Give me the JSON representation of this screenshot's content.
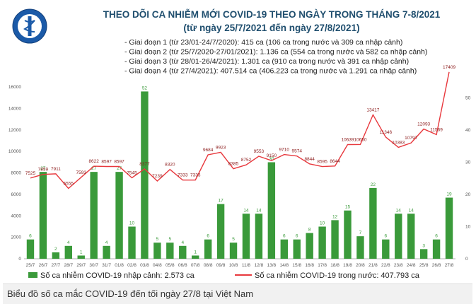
{
  "title": {
    "line1": "THEO DÕI CA NHIỄM MỚI COVID-19 THEO NGÀY TRONG THÁNG 7-8/2021",
    "line2": "(từ ngày 25/7/2021 đến ngày 27/8/2021)"
  },
  "logo": {
    "text": "BỘ Y TẾ · MINISTRY OF HEALTH"
  },
  "phases": [
    "- Giai đoạn 1 (từ 23/01-24/7/2020): 415 ca (106 ca trong nước và 309 ca nhập cảnh)",
    "- Giai đoạn 2 (từ 25/7/2020-27/01/2021): 1.136 ca (554 ca trong nước và 582 ca nhập cảnh)",
    "- Giai đoạn 3 (từ 28/01-26/4/2021): 1.301 ca (910 ca trong nước và 391 ca nhập cảnh)",
    "- Giai đoạn 4 (từ 27/4/2021): 407.514 ca (406.223 ca trong nước và 1.291 ca nhập cảnh)"
  ],
  "legend": {
    "bar_label": "Số ca nhiễm COVID-19 nhập cảnh: 2.573 ca",
    "line_label": "Số ca nhiễm COVID-19 trong nước: 407.793 ca"
  },
  "caption": "Biểu đồ số ca mắc COVID-19 đến tối ngày 27/8 tại Việt Nam",
  "colors": {
    "bar": "#3a9a3a",
    "line": "#e8383d",
    "title": "#1f4e6e"
  },
  "chart_data": {
    "type": "bar",
    "categories": [
      "25/7",
      "26/7",
      "27/7",
      "28/7",
      "29/7",
      "30/7",
      "31/7",
      "01/8",
      "02/8",
      "03/8",
      "04/8",
      "05/8",
      "06/8",
      "07/8",
      "08/8",
      "09/8",
      "10/8",
      "11/8",
      "12/8",
      "13/8",
      "14/8",
      "15/8",
      "16/8",
      "17/8",
      "18/8",
      "19/8",
      "20/8",
      "21/8",
      "22/8",
      "23/8",
      "24/8",
      "25/8",
      "26/8",
      "27/8"
    ],
    "series": [
      {
        "name": "Số ca nhiễm COVID-19 nhập cảnh: 2.573 ca",
        "type": "bar",
        "axis": "right",
        "values": [
          6,
          27,
          2,
          4,
          1,
          27,
          4,
          27,
          10,
          52,
          5,
          5,
          4,
          1,
          6,
          17,
          5,
          14,
          14,
          30,
          6,
          6,
          8,
          10,
          12,
          15,
          7,
          22,
          6,
          14,
          14,
          3,
          6,
          19
        ]
      },
      {
        "name": "Số ca nhiễm COVID-19 trong nước: 407.793 ca",
        "type": "line",
        "axis": "left",
        "values": [
          7525,
          7859,
          7911,
          6555,
          7593,
          8622,
          8597,
          8597,
          7545,
          8377,
          7239,
          8320,
          7333,
          7333,
          9684,
          9923,
          8385,
          8752,
          9553,
          9150,
          9710,
          9574,
          8844,
          8595,
          8644,
          10639,
          10650,
          13417,
          11346,
          10383,
          10797,
          12093,
          11569,
          17409
        ]
      }
    ],
    "left_axis": {
      "ticks": [
        0,
        2000,
        4000,
        6000,
        8000,
        10000,
        12000,
        14000,
        16000
      ],
      "range": [
        0,
        17000
      ]
    },
    "right_axis": {
      "ticks": [
        0,
        10,
        20,
        30,
        40,
        50
      ],
      "range": [
        0,
        56.7
      ]
    },
    "left_ticks_text": [
      "0",
      "2000",
      "4000",
      "6000",
      "8000",
      "10000",
      "12000",
      "14000",
      "16000"
    ],
    "right_ticks_text": [
      "0",
      "10",
      "20",
      "30",
      "40",
      "50"
    ],
    "grid": false,
    "legend_position": "bottom"
  }
}
